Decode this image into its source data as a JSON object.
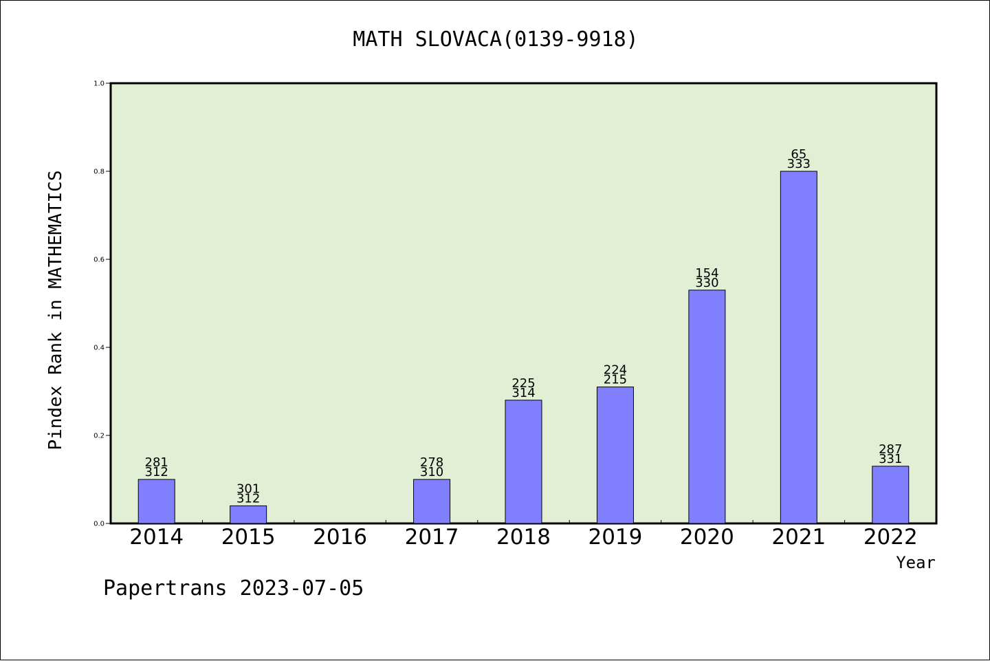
{
  "chart_data": {
    "type": "bar",
    "title": "MATH SLOVACA(0139-9918)",
    "xlabel": "Year",
    "ylabel": "Pindex Rank in MATHEMATICS",
    "ylim": [
      0,
      1.0
    ],
    "yticks": [
      "0.0",
      "0.2",
      "0.4",
      "0.6",
      "0.8",
      "1.0"
    ],
    "grid": false,
    "categories": [
      "2014",
      "2015",
      "2016",
      "2017",
      "2018",
      "2019",
      "2020",
      "2021",
      "2022"
    ],
    "values": [
      0.1,
      0.04,
      null,
      0.1,
      0.28,
      0.31,
      0.53,
      0.8,
      0.13
    ],
    "labels_top": [
      "281",
      "301",
      "",
      "278",
      "225",
      "224",
      "154",
      "65",
      "287"
    ],
    "labels_bottom": [
      "312",
      "312",
      "",
      "310",
      "314",
      "215",
      "330",
      "333",
      "331"
    ]
  },
  "footer": "Papertrans 2023-07-05",
  "colors": {
    "plot_bg": "#e2efd5",
    "bar_fill": "#8080ff",
    "bar_stroke": "#000000"
  }
}
